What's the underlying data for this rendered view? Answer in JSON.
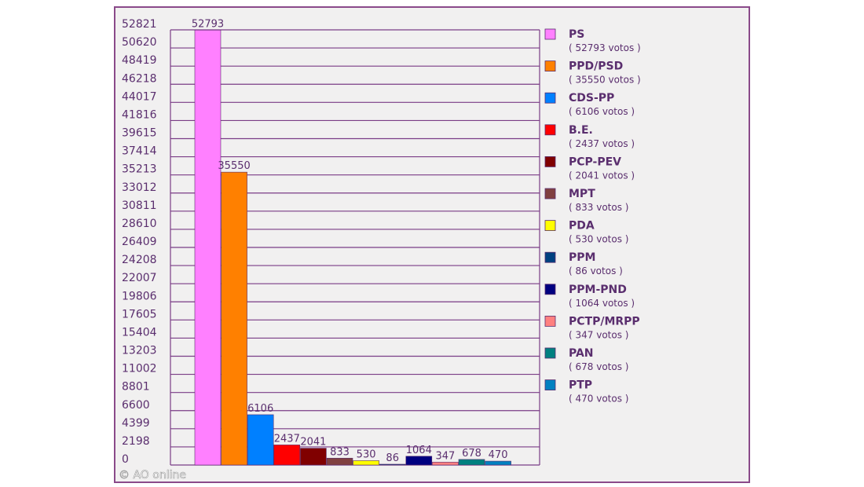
{
  "chart_data": {
    "type": "bar",
    "y_ticks": [
      "52821",
      "50620",
      "48419",
      "46218",
      "44017",
      "41816",
      "39615",
      "37414",
      "35213",
      "33012",
      "30811",
      "28610",
      "26409",
      "24208",
      "22007",
      "19806",
      "17605",
      "15404",
      "13203",
      "11002",
      "8801",
      "6600",
      "4399",
      "2198",
      "0"
    ],
    "ylim": [
      0,
      52821
    ],
    "grid": true,
    "legend_position": "right",
    "series": [
      {
        "name": "PS",
        "value": 52793,
        "value_label": "52793",
        "votes_label": "( 52793 votos )",
        "color": "#ff80ff"
      },
      {
        "name": "PPD/PSD",
        "value": 35550,
        "value_label": "35550",
        "votes_label": "( 35550 votos )",
        "color": "#ff8000"
      },
      {
        "name": "CDS-PP",
        "value": 6106,
        "value_label": "6106",
        "votes_label": "( 6106 votos )",
        "color": "#0080ff"
      },
      {
        "name": "B.E.",
        "value": 2437,
        "value_label": "2437",
        "votes_label": "( 2437 votos )",
        "color": "#ff0000"
      },
      {
        "name": "PCP-PEV",
        "value": 2041,
        "value_label": "2041",
        "votes_label": "( 2041 votos )",
        "color": "#800000"
      },
      {
        "name": "MPT",
        "value": 833,
        "value_label": "833",
        "votes_label": "( 833 votos )",
        "color": "#804040"
      },
      {
        "name": "PDA",
        "value": 530,
        "value_label": "530",
        "votes_label": "( 530 votos )",
        "color": "#ffff00"
      },
      {
        "name": "PPM",
        "value": 86,
        "value_label": "86",
        "votes_label": "( 86 votos )",
        "color": "#004080"
      },
      {
        "name": "PPM-PND",
        "value": 1064,
        "value_label": "1064",
        "votes_label": "( 1064 votos )",
        "color": "#000080"
      },
      {
        "name": "PCTP/MRPP",
        "value": 347,
        "value_label": "347",
        "votes_label": "( 347 votos )",
        "color": "#ff8080"
      },
      {
        "name": "PAN",
        "value": 678,
        "value_label": "678",
        "votes_label": "( 678 votos )",
        "color": "#008080"
      },
      {
        "name": "PTP",
        "value": 470,
        "value_label": "470",
        "votes_label": "( 470 votos )",
        "color": "#0080c0"
      }
    ],
    "credit": "© AO online"
  }
}
